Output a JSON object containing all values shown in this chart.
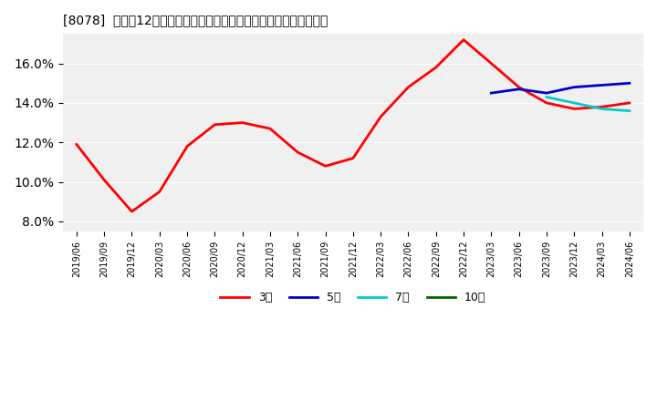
{
  "title": "[8078]  売上高12か月移動合計の対前年同期増減率の標準偏差の推移",
  "ylabel": "",
  "ylim": [
    0.075,
    0.175
  ],
  "yticks": [
    0.08,
    0.1,
    0.12,
    0.14,
    0.16
  ],
  "ytick_labels": [
    "8.0%",
    "10.0%",
    "12.0%",
    "14.0%",
    "16.0%"
  ],
  "legend_labels": [
    "3年",
    "5年",
    "7年",
    "10年"
  ],
  "legend_colors": [
    "#ff0000",
    "#0000cc",
    "#00cccc",
    "#006600"
  ],
  "background_color": "#f0f0f0",
  "x_labels": [
    "2019/06",
    "2019/09",
    "2019/12",
    "2020/03",
    "2020/06",
    "2020/09",
    "2020/12",
    "2021/03",
    "2021/06",
    "2021/09",
    "2021/12",
    "2022/03",
    "2022/06",
    "2022/09",
    "2022/12",
    "2023/03",
    "2023/06",
    "2023/09",
    "2023/12",
    "2024/03",
    "2024/06"
  ],
  "series_3y": [
    0.119,
    0.101,
    0.085,
    0.095,
    0.118,
    0.129,
    0.13,
    0.127,
    0.115,
    0.108,
    0.112,
    0.133,
    0.148,
    0.158,
    0.172,
    0.16,
    0.148,
    0.14,
    0.137,
    0.138,
    0.14
  ],
  "series_5y": [
    null,
    null,
    null,
    null,
    null,
    null,
    null,
    null,
    null,
    null,
    null,
    null,
    null,
    null,
    null,
    0.145,
    0.147,
    0.145,
    0.148,
    0.149,
    0.15
  ],
  "series_7y": [
    null,
    null,
    null,
    null,
    null,
    null,
    null,
    null,
    null,
    null,
    null,
    null,
    null,
    null,
    null,
    null,
    null,
    0.143,
    0.14,
    0.137,
    0.136
  ],
  "series_10y": [
    null,
    null,
    null,
    null,
    null,
    null,
    null,
    null,
    null,
    null,
    null,
    null,
    null,
    null,
    null,
    null,
    null,
    null,
    null,
    null,
    0.14
  ]
}
